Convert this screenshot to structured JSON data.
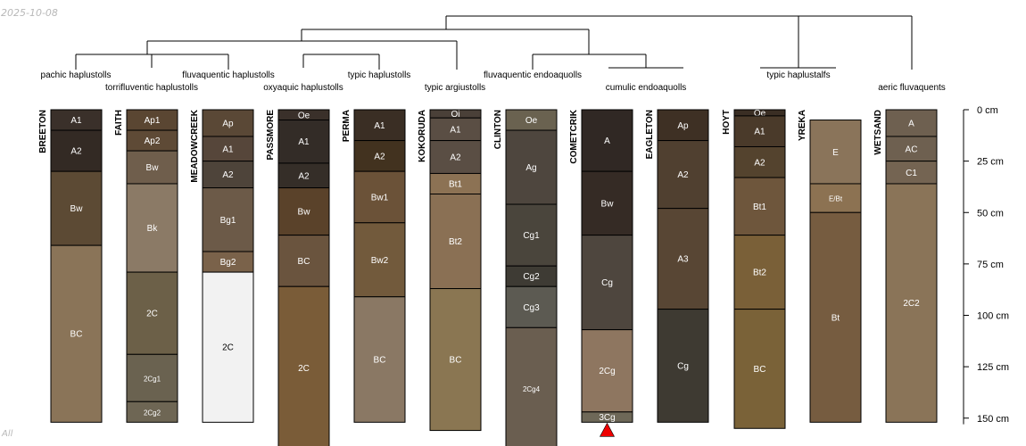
{
  "meta": {
    "date_stamp": "2025-10-08",
    "corner_tag": "All"
  },
  "depth_axis": {
    "unit": "cm",
    "range_cm": [
      0,
      153
    ],
    "ticks": [
      {
        "value": 0,
        "label": "0 cm"
      },
      {
        "value": 25,
        "label": "25 cm"
      },
      {
        "value": 50,
        "label": "50 cm"
      },
      {
        "value": 75,
        "label": "75 cm"
      },
      {
        "value": 100,
        "label": "100 cm"
      },
      {
        "value": 125,
        "label": "125 cm"
      },
      {
        "value": 150,
        "label": "150 cm"
      }
    ]
  },
  "taxa_labels": [
    "pachic haplustolls",
    "torrifluventic haplustolls",
    "fluvaquentic haplustolls",
    "oxyaquic haplustolls",
    "typic haplustolls",
    "typic argiustolls",
    "fluvaquentic endoaquolls",
    "cumulic endoaquolls",
    "typic haplustalfs",
    "aeric fluvaquents"
  ],
  "profiles": [
    {
      "name": "BREETON",
      "horizons": [
        {
          "name": "A1",
          "top": 0,
          "bottom": 10,
          "color": "#3a302a"
        },
        {
          "name": "A2",
          "top": 10,
          "bottom": 30,
          "color": "#332a24"
        },
        {
          "name": "Bw",
          "top": 30,
          "bottom": 66,
          "color": "#5c4a34"
        },
        {
          "name": "BC",
          "top": 66,
          "bottom": 152,
          "color": "#8a7458"
        }
      ]
    },
    {
      "name": "FAITH",
      "horizons": [
        {
          "name": "Ap1",
          "top": 0,
          "bottom": 10,
          "color": "#5a4632"
        },
        {
          "name": "Ap2",
          "top": 10,
          "bottom": 20,
          "color": "#5e4a36"
        },
        {
          "name": "Bw",
          "top": 20,
          "bottom": 36,
          "color": "#6f5e4c"
        },
        {
          "name": "Bk",
          "top": 36,
          "bottom": 79,
          "color": "#8b7a66"
        },
        {
          "name": "2C",
          "top": 79,
          "bottom": 119,
          "color": "#6c6048"
        },
        {
          "name": "2Cg1",
          "top": 119,
          "bottom": 142,
          "color": "#6a6250"
        },
        {
          "name": "2Cg2",
          "top": 142,
          "bottom": 152,
          "color": "#6e6654"
        }
      ]
    },
    {
      "name": "MEADOWCREEK",
      "horizons": [
        {
          "name": "Ap",
          "top": 0,
          "bottom": 13,
          "color": "#5a4836"
        },
        {
          "name": "A1",
          "top": 13,
          "bottom": 25,
          "color": "#56463a"
        },
        {
          "name": "A2",
          "top": 25,
          "bottom": 38,
          "color": "#4e443a"
        },
        {
          "name": "Bg1",
          "top": 38,
          "bottom": 69,
          "color": "#6c5a48"
        },
        {
          "name": "Bg2",
          "top": 69,
          "bottom": 79,
          "color": "#7a624a"
        },
        {
          "name": "2C",
          "top": 79,
          "bottom": 152,
          "color": "#f2f2f2"
        }
      ]
    },
    {
      "name": "PASSMORE",
      "horizons": [
        {
          "name": "Oe",
          "top": 0,
          "bottom": 5,
          "color": "#3a302a"
        },
        {
          "name": "A1",
          "top": 5,
          "bottom": 26,
          "color": "#332c27"
        },
        {
          "name": "A2",
          "top": 26,
          "bottom": 38,
          "color": "#352e28"
        },
        {
          "name": "Bw",
          "top": 38,
          "bottom": 61,
          "color": "#5a422a"
        },
        {
          "name": "BC",
          "top": 61,
          "bottom": 86,
          "color": "#6a543e"
        },
        {
          "name": "2C",
          "top": 86,
          "bottom": 165,
          "color": "#7a5c38"
        }
      ]
    },
    {
      "name": "PERMA",
      "horizons": [
        {
          "name": "A1",
          "top": 0,
          "bottom": 15,
          "color": "#3a2e24"
        },
        {
          "name": "A2",
          "top": 15,
          "bottom": 30,
          "color": "#42321f"
        },
        {
          "name": "Bw1",
          "top": 30,
          "bottom": 55,
          "color": "#6b5238"
        },
        {
          "name": "Bw2",
          "top": 55,
          "bottom": 91,
          "color": "#725a3c"
        },
        {
          "name": "BC",
          "top": 91,
          "bottom": 152,
          "color": "#8a7864"
        }
      ]
    },
    {
      "name": "KOKORUDA",
      "horizons": [
        {
          "name": "Oi",
          "top": 0,
          "bottom": 4,
          "color": "#4a4038"
        },
        {
          "name": "A1",
          "top": 4,
          "bottom": 15,
          "color": "#5a4e44"
        },
        {
          "name": "A2",
          "top": 15,
          "bottom": 31,
          "color": "#5a4e44"
        },
        {
          "name": "Bt1",
          "top": 31,
          "bottom": 41,
          "color": "#8c7254"
        },
        {
          "name": "Bt2",
          "top": 41,
          "bottom": 87,
          "color": "#8a7054"
        },
        {
          "name": "BC",
          "top": 87,
          "bottom": 156,
          "color": "#8a7652"
        }
      ]
    },
    {
      "name": "CLINTON",
      "horizons": [
        {
          "name": "Oe",
          "top": 0,
          "bottom": 10,
          "color": "#6a6250"
        },
        {
          "name": "Ag",
          "top": 10,
          "bottom": 46,
          "color": "#4e463e"
        },
        {
          "name": "Cg1",
          "top": 46,
          "bottom": 76,
          "color": "#4a453c"
        },
        {
          "name": "Cg2",
          "top": 76,
          "bottom": 86,
          "color": "#3e3b34"
        },
        {
          "name": "Cg3",
          "top": 86,
          "bottom": 106,
          "color": "#5c5a52"
        },
        {
          "name": "2Cg4",
          "top": 106,
          "bottom": 165,
          "color": "#6a5e50"
        }
      ]
    },
    {
      "name": "COMETCRIK",
      "horizons": [
        {
          "name": "A",
          "top": 0,
          "bottom": 30,
          "color": "#302824"
        },
        {
          "name": "Bw",
          "top": 30,
          "bottom": 61,
          "color": "#352b25"
        },
        {
          "name": "Cg",
          "top": 61,
          "bottom": 107,
          "color": "#4e463e"
        },
        {
          "name": "2Cg",
          "top": 107,
          "bottom": 147,
          "color": "#8e7660"
        },
        {
          "name": "3Cg",
          "top": 147,
          "bottom": 152,
          "color": "#6e6858"
        }
      ]
    },
    {
      "name": "EAGLETON",
      "horizons": [
        {
          "name": "Ap",
          "top": 0,
          "bottom": 15,
          "color": "#3e3024"
        },
        {
          "name": "A2",
          "top": 15,
          "bottom": 48,
          "color": "#504030"
        },
        {
          "name": "A3",
          "top": 48,
          "bottom": 97,
          "color": "#584634"
        },
        {
          "name": "Cg",
          "top": 97,
          "bottom": 152,
          "color": "#3e3a32"
        }
      ]
    },
    {
      "name": "HOYT",
      "horizons": [
        {
          "name": "Oe",
          "top": 0,
          "bottom": 3,
          "color": "#3a2e24"
        },
        {
          "name": "A1",
          "top": 3,
          "bottom": 18,
          "color": "#4a3a2a"
        },
        {
          "name": "A2",
          "top": 18,
          "bottom": 33,
          "color": "#54432e"
        },
        {
          "name": "Bt1",
          "top": 33,
          "bottom": 61,
          "color": "#6e563c"
        },
        {
          "name": "Bt2",
          "top": 61,
          "bottom": 97,
          "color": "#7a6038"
        },
        {
          "name": "BC",
          "top": 97,
          "bottom": 155,
          "color": "#7a6238"
        }
      ]
    },
    {
      "name": "YREKA",
      "horizons": [
        {
          "name": "E",
          "top": 5,
          "bottom": 36,
          "color": "#8a745a"
        },
        {
          "name": "E/Bt",
          "top": 36,
          "bottom": 50,
          "color": "#8c7252"
        },
        {
          "name": "Bt",
          "top": 50,
          "bottom": 152,
          "color": "#765c40"
        }
      ]
    },
    {
      "name": "WETSAND",
      "horizons": [
        {
          "name": "A",
          "top": 0,
          "bottom": 13,
          "color": "#6e6050"
        },
        {
          "name": "AC",
          "top": 13,
          "bottom": 25,
          "color": "#6e6050"
        },
        {
          "name": "C1",
          "top": 25,
          "bottom": 36,
          "color": "#746452"
        },
        {
          "name": "2C2",
          "top": 36,
          "bottom": 152,
          "color": "#8a7458"
        }
      ]
    }
  ],
  "markers": [
    {
      "profile": "COMETCRIK",
      "type": "triangle",
      "color": "#ee0000"
    }
  ]
}
